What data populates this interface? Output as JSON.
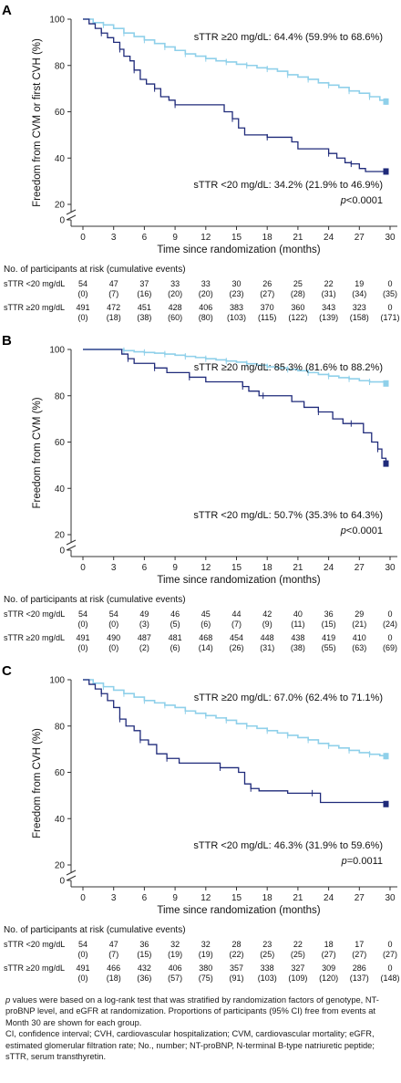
{
  "colors": {
    "low": "#1f2a7a",
    "high": "#8fd0ea",
    "axis": "#333333"
  },
  "risk_title": "No. of participants at risk (cumulative events)",
  "footnote": {
    "p_word": "p",
    "line1": " values were based on a log-rank test that was stratified by randomization factors of genotype, NT-proBNP level, and eGFR at randomization. Proportions of participants (95% CI) free from events at Month 30 are shown for each group.",
    "line2": "CI, confidence interval; CVH, cardiovascular hospitalization; CVM, cardiovascular mortality; eGFR, estimated glomerular filtration rate; No., number; NT-proBNP, N-terminal B-type natriuretic peptide; sTTR, serum transthyretin."
  },
  "chart_data": [
    {
      "type": "line",
      "panel_label": "A",
      "ylabel": "Freedom from CVM or first CVH (%)",
      "xlabel": "Time since randomization (months)",
      "xlim": [
        0,
        30
      ],
      "ylim": [
        20,
        100
      ],
      "axis_break_zero": "0",
      "xticks": [
        "0",
        "3",
        "6",
        "9",
        "12",
        "15",
        "18",
        "21",
        "24",
        "27",
        "30"
      ],
      "yticks": [
        "20",
        "40",
        "60",
        "80",
        "100"
      ],
      "annot_high": "sTTR ≥20 mg/dL: 64.4% (59.9% to 68.6%)",
      "annot_low": "sTTR <20 mg/dL: 34.2% (21.9% to 46.9%)",
      "p_prefix": "p",
      "p_value": "<0.0001",
      "series": [
        {
          "name": "sTTR ≥20 mg/dL",
          "x": [
            0,
            1,
            2,
            3,
            4,
            5,
            6,
            7,
            8,
            9,
            10,
            11,
            12,
            13,
            14,
            15,
            16,
            17,
            18,
            19,
            20,
            21,
            22,
            23,
            24,
            25,
            26,
            27,
            28,
            29,
            29.6
          ],
          "y": [
            100,
            98.5,
            97.5,
            96,
            94,
            92.5,
            91,
            89.5,
            88,
            86.5,
            85,
            84,
            83,
            82,
            81.5,
            80.5,
            80,
            79,
            78.5,
            77.5,
            76,
            75,
            74,
            72.5,
            71.5,
            70.5,
            69,
            68,
            66.5,
            65,
            64.4
          ]
        },
        {
          "name": "sTTR <20 mg/dL",
          "x": [
            0,
            0.6,
            1.2,
            1.8,
            2.4,
            3,
            3.6,
            4,
            4.6,
            5,
            5.6,
            6.2,
            7,
            7.6,
            8.4,
            9,
            10.2,
            13.8,
            14.6,
            15.2,
            15.8,
            18,
            20.4,
            21,
            24,
            24.8,
            25.6,
            26.2,
            27,
            27.6,
            29.6
          ],
          "y": [
            100,
            98,
            96,
            94,
            92,
            90,
            87,
            84,
            82,
            78,
            74,
            72,
            70,
            66.5,
            65,
            63,
            63,
            60,
            57,
            53,
            50,
            49,
            47,
            44,
            42,
            40,
            38,
            37.5,
            35.5,
            34.2,
            34.2
          ]
        }
      ],
      "risk": {
        "rows": [
          {
            "label": "sTTR <20 mg/dL",
            "at_risk": [
              "54",
              "47",
              "37",
              "33",
              "33",
              "30",
              "26",
              "25",
              "22",
              "19",
              "0"
            ],
            "events": [
              "(0)",
              "(7)",
              "(16)",
              "(20)",
              "(20)",
              "(23)",
              "(27)",
              "(28)",
              "(31)",
              "(34)",
              "(35)"
            ]
          },
          {
            "label": "sTTR ≥20 mg/dL",
            "at_risk": [
              "491",
              "472",
              "451",
              "428",
              "406",
              "383",
              "370",
              "360",
              "343",
              "323",
              "0"
            ],
            "events": [
              "(0)",
              "(18)",
              "(38)",
              "(60)",
              "(80)",
              "(103)",
              "(115)",
              "(122)",
              "(139)",
              "(158)",
              "(171)"
            ]
          }
        ]
      }
    },
    {
      "type": "line",
      "panel_label": "B",
      "ylabel": "Freedom from CVM (%)",
      "xlabel": "Time since randomization (months)",
      "xlim": [
        0,
        30
      ],
      "ylim": [
        20,
        100
      ],
      "axis_break_zero": "0",
      "xticks": [
        "0",
        "3",
        "6",
        "9",
        "12",
        "15",
        "18",
        "21",
        "24",
        "27",
        "30"
      ],
      "yticks": [
        "20",
        "40",
        "60",
        "80",
        "100"
      ],
      "annot_high": "sTTR ≥20 mg/dL: 85.3% (81.6% to 88.2%)",
      "annot_low": "sTTR <20 mg/dL: 50.7% (35.3% to 64.3%)",
      "p_prefix": "p",
      "p_value": "<0.0001",
      "series": [
        {
          "name": "sTTR ≥20 mg/dL",
          "x": [
            0,
            3,
            4,
            5,
            6,
            7,
            8,
            9,
            10,
            11,
            12,
            13,
            14,
            15,
            16,
            17,
            18,
            19,
            20,
            21,
            22,
            23,
            24,
            25,
            26,
            27,
            28,
            29.6
          ],
          "y": [
            100,
            100,
            99.5,
            99,
            98.7,
            98.4,
            98,
            97.5,
            97,
            96.5,
            96,
            95.5,
            95,
            94.5,
            93.8,
            93.2,
            92.5,
            92,
            91.4,
            90.8,
            90,
            89.2,
            88.5,
            87.8,
            87.3,
            86.5,
            86,
            85.3
          ]
        },
        {
          "name": "sTTR <20 mg/dL",
          "x": [
            0,
            3.4,
            3.8,
            4.4,
            5,
            6.2,
            7,
            8.2,
            9.6,
            10.4,
            12,
            13.6,
            15.6,
            16.2,
            17.2,
            17.6,
            20.4,
            21.6,
            23,
            24.4,
            25.4,
            26.2,
            27.4,
            28.2,
            28.8,
            29.2,
            29.6
          ],
          "y": [
            100,
            100,
            98,
            96,
            94,
            94,
            92,
            90,
            90,
            88,
            86,
            86,
            84,
            82,
            80,
            80,
            77.5,
            75,
            73,
            70,
            68,
            68,
            64,
            60,
            57,
            53,
            50.7
          ]
        }
      ],
      "risk": {
        "rows": [
          {
            "label": "sTTR <20 mg/dL",
            "at_risk": [
              "54",
              "54",
              "49",
              "46",
              "45",
              "44",
              "42",
              "40",
              "36",
              "29",
              "0"
            ],
            "events": [
              "(0)",
              "(0)",
              "(3)",
              "(5)",
              "(6)",
              "(7)",
              "(9)",
              "(11)",
              "(15)",
              "(21)",
              "(24)"
            ]
          },
          {
            "label": "sTTR ≥20 mg/dL",
            "at_risk": [
              "491",
              "490",
              "487",
              "481",
              "468",
              "454",
              "448",
              "438",
              "419",
              "410",
              "0"
            ],
            "events": [
              "(0)",
              "(0)",
              "(2)",
              "(6)",
              "(14)",
              "(26)",
              "(31)",
              "(38)",
              "(55)",
              "(63)",
              "(69)"
            ]
          }
        ]
      }
    },
    {
      "type": "line",
      "panel_label": "C",
      "ylabel": "Freedom from CVH (%)",
      "xlabel": "Time since randomization (months)",
      "xlim": [
        0,
        30
      ],
      "ylim": [
        20,
        100
      ],
      "axis_break_zero": "0",
      "xticks": [
        "0",
        "3",
        "6",
        "9",
        "12",
        "15",
        "18",
        "21",
        "24",
        "27",
        "30"
      ],
      "yticks": [
        "20",
        "40",
        "60",
        "80",
        "100"
      ],
      "annot_high": "sTTR ≥20 mg/dL: 67.0% (62.4% to 71.1%)",
      "annot_low": "sTTR <20 mg/dL: 46.3% (31.9% to 59.6%)",
      "p_prefix": "p",
      "p_value": "=0.0011",
      "series": [
        {
          "name": "sTTR ≥20 mg/dL",
          "x": [
            0,
            1,
            2,
            3,
            4,
            5,
            6,
            7,
            8,
            9,
            10,
            11,
            12,
            13,
            14,
            15,
            16,
            17,
            18,
            19,
            20,
            21,
            22,
            23,
            24,
            25,
            26,
            27,
            28,
            29,
            29.6
          ],
          "y": [
            100,
            98.5,
            97,
            95.5,
            94,
            92.5,
            91,
            90,
            89,
            88,
            86.5,
            85.5,
            84.5,
            83.5,
            82.5,
            81,
            80,
            79,
            78,
            77,
            76,
            75,
            74,
            72.5,
            71.5,
            70.5,
            69.5,
            68.5,
            67.8,
            67.2,
            67
          ]
        },
        {
          "name": "sTTR <20 mg/dL",
          "x": [
            0,
            0.6,
            1.2,
            1.8,
            2.4,
            3,
            3.6,
            4.2,
            5,
            5.6,
            6.4,
            7.2,
            8.2,
            9.4,
            12,
            13.4,
            15.2,
            15.8,
            16.4,
            17.2,
            20,
            22.4,
            23.2,
            29.6
          ],
          "y": [
            100,
            98,
            96,
            94,
            91,
            88,
            83,
            80,
            78,
            74,
            72,
            68,
            66,
            64,
            64,
            62,
            60,
            55,
            53,
            52,
            51,
            51,
            47,
            46.3
          ]
        }
      ],
      "risk": {
        "rows": [
          {
            "label": "sTTR <20 mg/dL",
            "at_risk": [
              "54",
              "47",
              "36",
              "32",
              "32",
              "28",
              "23",
              "22",
              "18",
              "17",
              "0"
            ],
            "events": [
              "(0)",
              "(7)",
              "(15)",
              "(19)",
              "(19)",
              "(22)",
              "(25)",
              "(25)",
              "(27)",
              "(27)",
              "(27)"
            ]
          },
          {
            "label": "sTTR ≥20 mg/dL",
            "at_risk": [
              "491",
              "466",
              "432",
              "406",
              "380",
              "357",
              "338",
              "327",
              "309",
              "286",
              "0"
            ],
            "events": [
              "(0)",
              "(18)",
              "(36)",
              "(57)",
              "(75)",
              "(91)",
              "(103)",
              "(109)",
              "(120)",
              "(137)",
              "(148)"
            ]
          }
        ]
      }
    }
  ]
}
